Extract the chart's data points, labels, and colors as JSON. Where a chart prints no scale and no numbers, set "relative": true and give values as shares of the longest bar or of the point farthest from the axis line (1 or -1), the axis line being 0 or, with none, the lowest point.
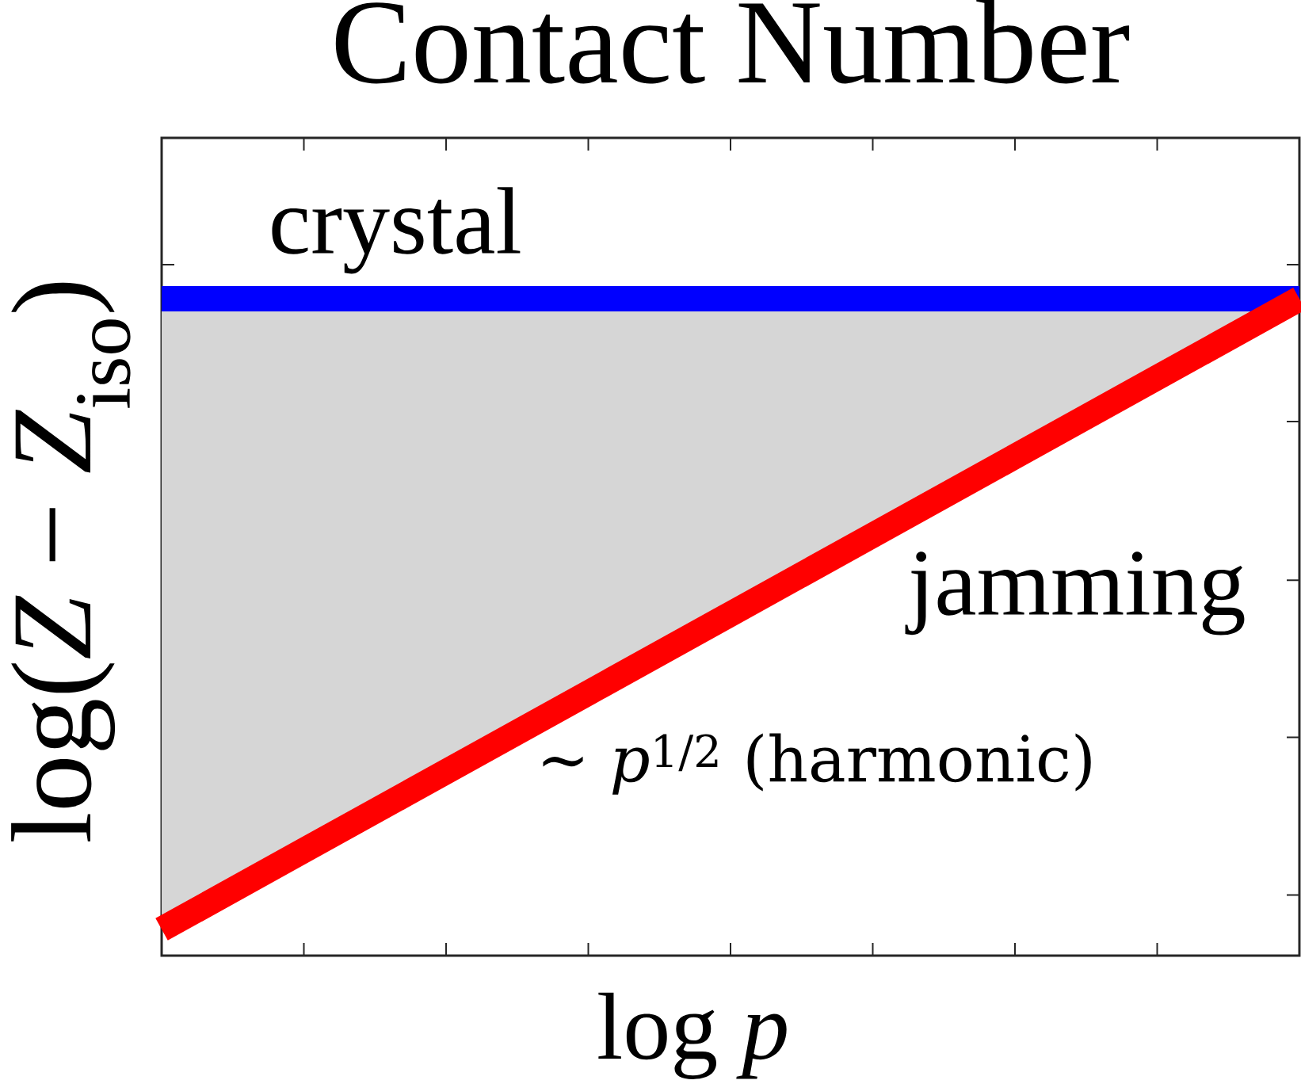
{
  "chart_data": {
    "type": "line",
    "title": "Contact Number",
    "xlabel": "log *p*",
    "ylabel": "log(*Z* − *Z*$_{iso}$)",
    "relative": true,
    "categories": [
      null,
      null,
      null,
      null,
      null,
      null,
      null,
      null,
      null
    ],
    "series": [
      {
        "name": "crystal",
        "color": "#0000ff",
        "values": [
          1,
          1,
          1,
          1,
          1,
          1,
          1,
          1,
          1
        ],
        "lower": [
          0.04,
          0.16,
          0.28,
          0.4,
          0.52,
          0.64,
          0.76,
          0.88,
          1
        ],
        "upper": [
          1,
          1,
          1,
          1,
          1,
          1,
          1,
          1,
          1
        ]
      },
      {
        "name": "jamming",
        "color": "#ff0000",
        "values": [
          0.04,
          0.16,
          0.28,
          0.4,
          0.52,
          0.64,
          0.76,
          0.88,
          1
        ]
      }
    ],
    "annotations": [
      "∼ *p*$^{1/2}$ (harmonic)"
    ]
  }
}
